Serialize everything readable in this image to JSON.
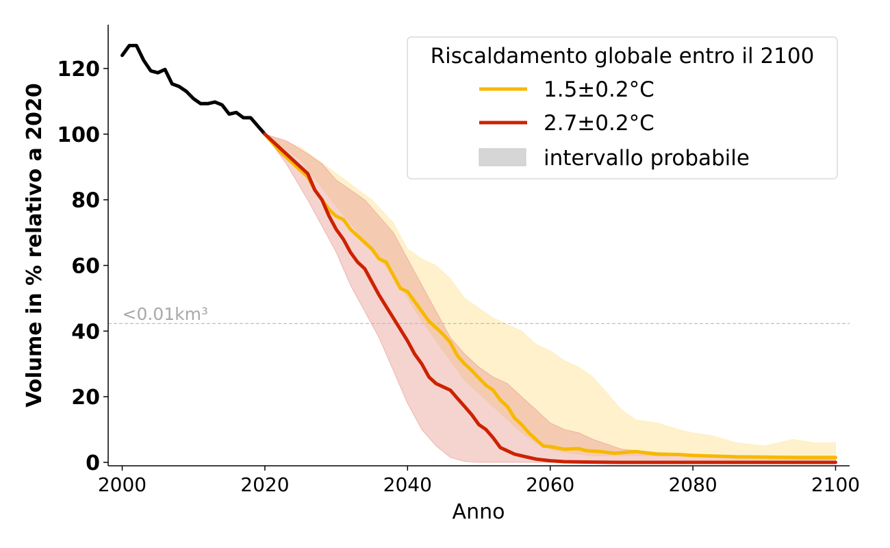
{
  "chart_data": {
    "type": "line",
    "xlabel": "Anno",
    "ylabel": "Volume in % relativo a 2020",
    "xlim": [
      1998,
      2102
    ],
    "ylim": [
      -1,
      133
    ],
    "xticks": [
      2000,
      2020,
      2040,
      2060,
      2080,
      2100
    ],
    "yticks": [
      0,
      20,
      40,
      60,
      80,
      100,
      120
    ],
    "grid": false,
    "legend": {
      "title": "Riscaldamento globale entro il 2100",
      "placement": "top-right",
      "entries": [
        "1.5±0.2°C",
        "2.7±0.2°C",
        "intervallo probabile"
      ]
    },
    "annotations": [
      {
        "text": "<0.01km³",
        "x": 2000,
        "y": 43,
        "threshold_y": 42.3
      }
    ],
    "colors": {
      "observed": "#000000",
      "low": "#f7b800",
      "high": "#cc2200",
      "low_band": "#fde9ad",
      "high_band": "#e8958d",
      "legend_band": "#d6d6d6",
      "threshold": "#b8b8b8"
    },
    "series": [
      {
        "role": "observed",
        "x": [
          2000,
          2001,
          2002,
          2003,
          2004,
          2005,
          2006,
          2007,
          2008,
          2009,
          2010,
          2011,
          2012,
          2013,
          2014,
          2015,
          2016,
          2017,
          2018,
          2019,
          2020
        ],
        "values": [
          124,
          127,
          127,
          122.5,
          119.3,
          118.7,
          119.7,
          115.3,
          114.5,
          113,
          110.8,
          109.3,
          109.3,
          109.8,
          108.9,
          106.1,
          106.6,
          105,
          105,
          102.5,
          100
        ]
      },
      {
        "name": "1.5±0.2°C",
        "role": "low",
        "x": [
          2020,
          2022,
          2024,
          2026,
          2027,
          2028,
          2029,
          2030,
          2031,
          2032,
          2033,
          2034,
          2035,
          2036,
          2037,
          2038,
          2039,
          2040,
          2041,
          2042,
          2043,
          2044,
          2045,
          2046,
          2047,
          2048,
          2049,
          2050,
          2051,
          2052,
          2053,
          2054,
          2055,
          2056,
          2057,
          2058,
          2059,
          2060,
          2062,
          2064,
          2065,
          2067,
          2069,
          2072,
          2075,
          2078,
          2080,
          2083,
          2086,
          2090,
          2094,
          2097,
          2100
        ],
        "values": [
          100,
          95,
          91,
          87,
          83,
          80,
          77,
          75,
          74,
          71,
          69,
          67,
          65,
          62,
          61,
          57,
          53,
          52,
          49,
          46,
          43,
          41,
          39,
          36.5,
          32.5,
          30,
          28,
          25.7,
          23.5,
          22,
          19,
          17,
          13.5,
          11.5,
          9,
          7,
          5,
          4.8,
          4,
          4.2,
          3.6,
          3.3,
          2.8,
          3.3,
          2.5,
          2.4,
          2.1,
          1.9,
          1.7,
          1.6,
          1.5,
          1.5,
          1.5
        ]
      },
      {
        "name": "2.7±0.2°C",
        "role": "high",
        "x": [
          2020,
          2022,
          2024,
          2026,
          2027,
          2028,
          2029,
          2030,
          2031,
          2032,
          2033,
          2034,
          2035,
          2036,
          2037,
          2038,
          2039,
          2040,
          2041,
          2042,
          2043,
          2044,
          2045,
          2046,
          2047,
          2048,
          2049,
          2050,
          2051,
          2052,
          2053,
          2054,
          2055,
          2056,
          2057,
          2058,
          2060,
          2062,
          2065,
          2070,
          2080,
          2090,
          2100
        ],
        "values": [
          100,
          96,
          92,
          88,
          83,
          80,
          75,
          71,
          68,
          64,
          61,
          59,
          55,
          51,
          47.5,
          44,
          40.5,
          37,
          33,
          30,
          26,
          24,
          23,
          22,
          19.5,
          17,
          14.5,
          11.5,
          10,
          7.5,
          4.5,
          3.5,
          2.5,
          2,
          1.5,
          1,
          0.5,
          0.2,
          0.1,
          0,
          0,
          0,
          0
        ]
      }
    ],
    "bands": [
      {
        "role": "low_band",
        "x": [
          2020,
          2025,
          2030,
          2035,
          2038,
          2040,
          2042,
          2044,
          2046,
          2048,
          2050,
          2052,
          2054,
          2056,
          2058,
          2060,
          2062,
          2064,
          2066,
          2068,
          2070,
          2072,
          2075,
          2078,
          2080,
          2083,
          2086,
          2090,
          2094,
          2097,
          2100
        ],
        "upper": [
          100,
          96,
          88,
          80,
          73,
          65,
          62,
          60,
          56,
          50,
          47,
          44,
          42,
          40,
          36,
          34,
          31,
          29,
          26,
          21,
          16,
          13,
          12,
          10,
          9,
          8,
          6,
          5,
          7,
          6,
          6
        ],
        "lower": [
          100,
          92,
          78,
          65,
          57,
          50,
          43,
          37,
          31,
          25,
          21,
          17,
          13,
          9,
          6,
          4,
          3,
          2.5,
          2,
          2,
          2,
          2,
          2,
          2,
          1.8,
          1.6,
          1.4,
          1.3,
          1.2,
          1.1,
          1
        ]
      },
      {
        "role": "high_band",
        "x": [
          2020,
          2023,
          2026,
          2028,
          2030,
          2032,
          2034,
          2036,
          2038,
          2040,
          2042,
          2044,
          2046,
          2048,
          2050,
          2052,
          2054,
          2056,
          2058,
          2060,
          2062,
          2064,
          2066,
          2068,
          2070,
          2075,
          2080,
          2085,
          2090,
          2095,
          2100
        ],
        "upper": [
          100,
          98,
          94,
          91,
          86,
          83,
          80,
          75,
          70,
          62,
          54,
          46,
          38,
          33,
          29,
          26,
          24,
          20,
          16,
          12,
          10,
          9,
          7,
          5.5,
          4,
          3,
          2.5,
          2,
          1.5,
          1,
          1
        ],
        "lower": [
          100,
          91,
          80,
          72,
          64,
          54,
          46,
          38,
          28,
          18,
          10,
          5,
          1.5,
          0.3,
          0,
          0,
          0,
          0,
          0,
          0,
          0,
          0,
          0,
          0,
          0,
          0,
          0,
          0,
          0,
          0,
          0
        ]
      }
    ]
  }
}
